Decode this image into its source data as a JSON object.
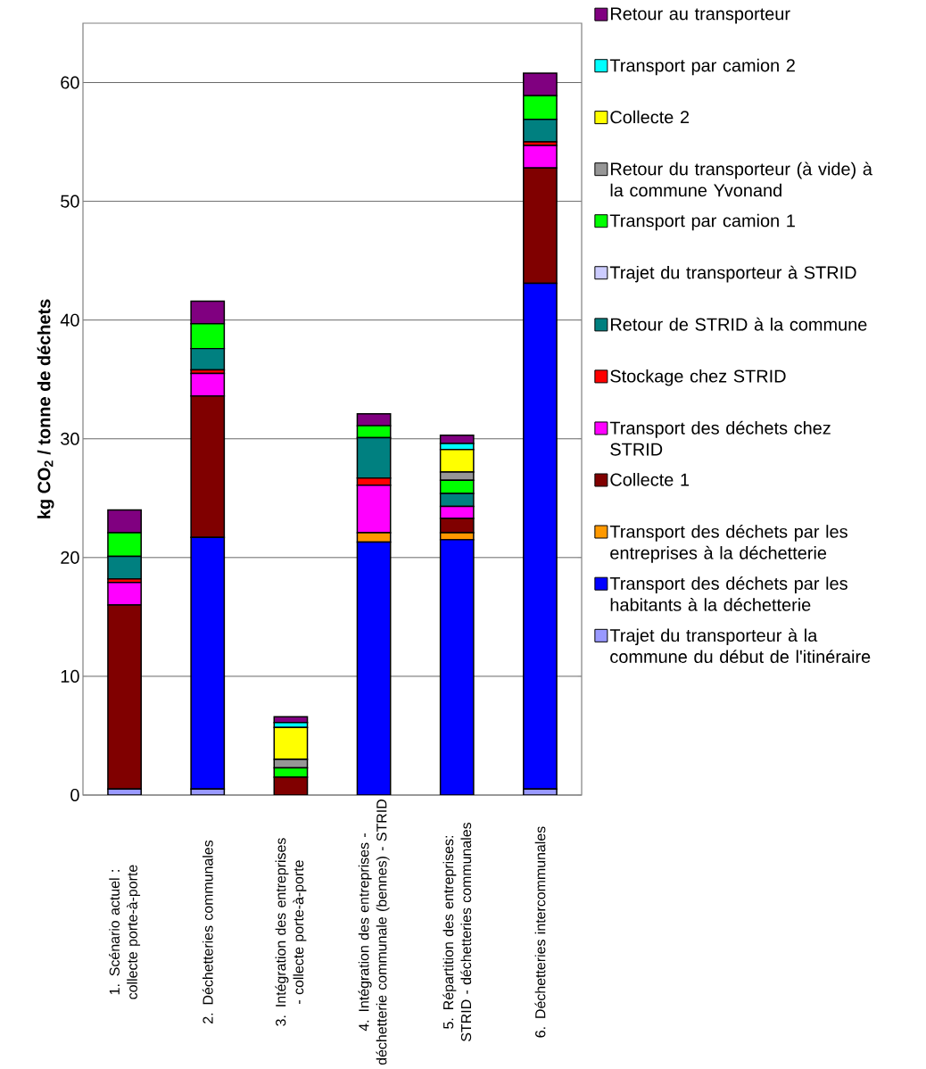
{
  "chart_data": {
    "type": "bar",
    "stacked": true,
    "ylabel": "kg CO$_{2}$ / tonne de déchets",
    "categories": [
      "1. Scénario actuel : collecte porte-à-porte",
      "2. Déchetteries communales",
      "3. Intégration des entreprises - collecte porte-à-porte",
      "4. Intégration des entreprises - déchetterie communale (bennes) - STRID",
      "5. Répartition des entreprises: STRID - déchetteries communales",
      "6. Déchetteries intercommunales"
    ],
    "series": [
      {
        "name": "Trajet du transporteur à la commune du début de l'itinéraire",
        "color": "#9999ff",
        "values": [
          0.5,
          0.5,
          0,
          0,
          0,
          0.5
        ]
      },
      {
        "name": "Transport des déchets par les habitants à la déchetterie",
        "color": "#0000ff",
        "values": [
          0,
          21.2,
          0,
          21.3,
          21.5,
          42.6
        ]
      },
      {
        "name": "Transport des déchets par les entreprises à la déchetterie",
        "color": "#ff9900",
        "values": [
          0,
          0,
          0,
          0.8,
          0.6,
          0
        ]
      },
      {
        "name": "Collecte 1",
        "color": "#800000",
        "values": [
          15.5,
          11.9,
          1.5,
          0,
          1.2,
          9.7
        ]
      },
      {
        "name": "Transport des déchets chez STRID",
        "color": "#ff00ff",
        "values": [
          1.9,
          1.9,
          0,
          4.0,
          1.0,
          1.9
        ]
      },
      {
        "name": "Stockage chez STRID",
        "color": "#ff0000",
        "values": [
          0.3,
          0.3,
          0,
          0.6,
          0,
          0.3
        ]
      },
      {
        "name": "Retour de STRID à la commune",
        "color": "#008080",
        "values": [
          1.9,
          1.8,
          0,
          3.4,
          1.1,
          1.9
        ]
      },
      {
        "name": "Trajet du transporteur à STRID",
        "color": "#ccccff",
        "values": [
          0,
          0,
          0,
          0,
          0,
          0
        ]
      },
      {
        "name": "Transport par camion 1",
        "color": "#00ff00",
        "values": [
          2.0,
          2.1,
          0.8,
          1.0,
          1.1,
          2.0
        ]
      },
      {
        "name": "Retour du transporteur (à vide) à la commune Yvonand",
        "color": "#969696",
        "values": [
          0,
          0,
          0.7,
          0,
          0.7,
          0
        ]
      },
      {
        "name": "Collecte 2",
        "color": "#ffff00",
        "values": [
          0,
          0,
          2.7,
          0,
          1.9,
          0
        ]
      },
      {
        "name": "Transport par camion 2",
        "color": "#00ffff",
        "values": [
          0,
          0,
          0.4,
          0,
          0.5,
          0
        ]
      },
      {
        "name": "Retour au transporteur",
        "color": "#800080",
        "values": [
          1.9,
          1.9,
          0.5,
          1.0,
          0.7,
          1.9
        ]
      }
    ],
    "ylim": [
      0,
      65
    ],
    "yticks": [
      0,
      10,
      20,
      30,
      40,
      50,
      60
    ],
    "grid": "y",
    "legend": "right"
  }
}
